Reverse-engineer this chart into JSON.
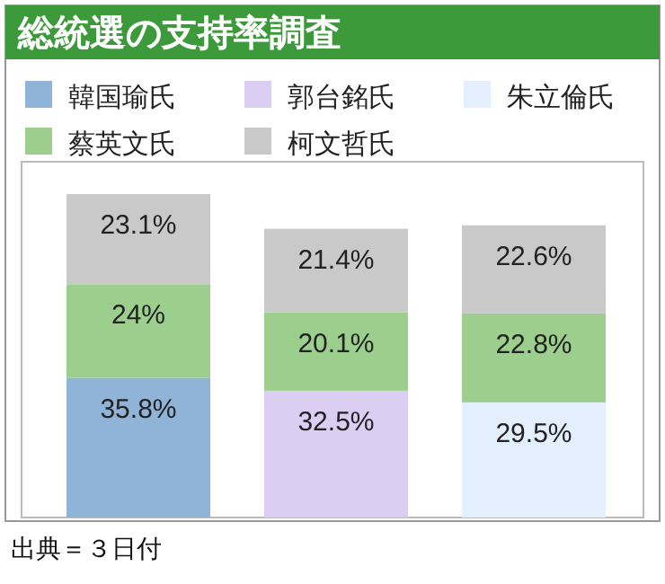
{
  "chart_data": {
    "type": "bar",
    "stacked": true,
    "title": "総統選の支持率調査",
    "categories": [
      null,
      null,
      null
    ],
    "legend": "top",
    "series": [
      {
        "name": "韓国瑜氏",
        "color": "#8fb4d8",
        "values": [
          35.8,
          null,
          null
        ],
        "value_labels": [
          "35.8%",
          null,
          null
        ]
      },
      {
        "name": "郭台銘氏",
        "color": "#dccdf3",
        "values": [
          null,
          32.5,
          null
        ],
        "value_labels": [
          null,
          "32.5%",
          null
        ]
      },
      {
        "name": "朱立倫氏",
        "color": "#e3effc",
        "values": [
          null,
          null,
          29.5
        ],
        "value_labels": [
          null,
          null,
          "29.5%"
        ]
      },
      {
        "name": "蔡英文氏",
        "color": "#9ccf8e",
        "values": [
          24,
          20.1,
          22.8
        ],
        "value_labels": [
          "24%",
          "20.1%",
          "22.8%"
        ]
      },
      {
        "name": "柯文哲氏",
        "color": "#c9c9c9",
        "values": [
          23.1,
          21.4,
          22.6
        ],
        "value_labels": [
          "23.1%",
          "21.4%",
          "22.6%"
        ]
      }
    ],
    "annotations": [
      "出典＝３日付"
    ]
  }
}
